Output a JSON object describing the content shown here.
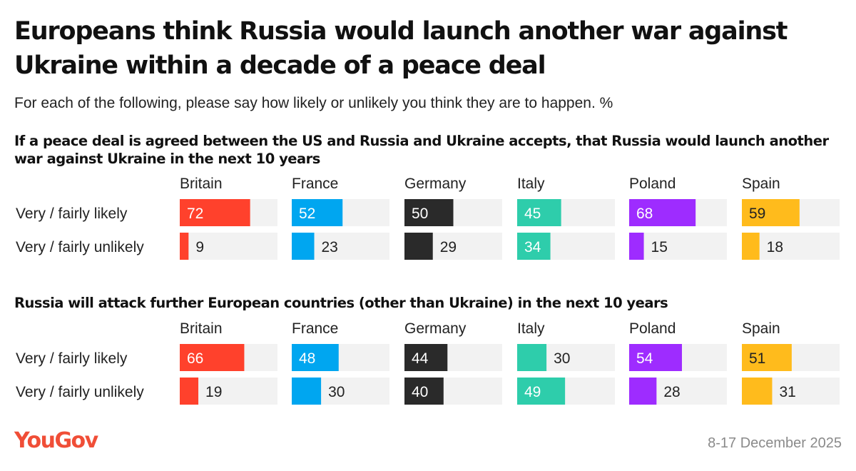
{
  "title": "Europeans think Russia would launch another war against Ukraine within a decade of a peace deal",
  "subtitle": "For each of the following, please say how likely or unlikely you think they are to happen. %",
  "footer": {
    "brand": "YouGov",
    "date": "8-17 December 2025"
  },
  "colors": {
    "Britain": "#ff412c",
    "France": "#00a6f0",
    "Germany": "#2a2a2a",
    "Italy": "#2ecdab",
    "Poland": "#9e2cff",
    "Spain": "#ffbb1c",
    "track": "#f2f2f2"
  },
  "chart_data": [
    {
      "type": "bar",
      "title": "If a peace deal is agreed between the US and Russia and Ukraine accepts, that Russia would launch another war against Ukraine in the next 10 years",
      "categories": [
        "Britain",
        "France",
        "Germany",
        "Italy",
        "Poland",
        "Spain"
      ],
      "series": [
        {
          "name": "Very / fairly likely",
          "values": [
            72,
            52,
            50,
            45,
            68,
            59
          ]
        },
        {
          "name": "Very / fairly unlikely",
          "values": [
            9,
            23,
            29,
            34,
            15,
            18
          ]
        }
      ],
      "ylim": [
        0,
        100
      ]
    },
    {
      "type": "bar",
      "title": "Russia will attack further European countries (other than Ukraine) in the next 10 years",
      "categories": [
        "Britain",
        "France",
        "Germany",
        "Italy",
        "Poland",
        "Spain"
      ],
      "series": [
        {
          "name": "Very / fairly likely",
          "values": [
            66,
            48,
            44,
            30,
            54,
            51
          ]
        },
        {
          "name": "Very / fairly unlikely",
          "values": [
            19,
            30,
            40,
            49,
            28,
            31
          ]
        }
      ],
      "ylim": [
        0,
        100
      ]
    }
  ]
}
